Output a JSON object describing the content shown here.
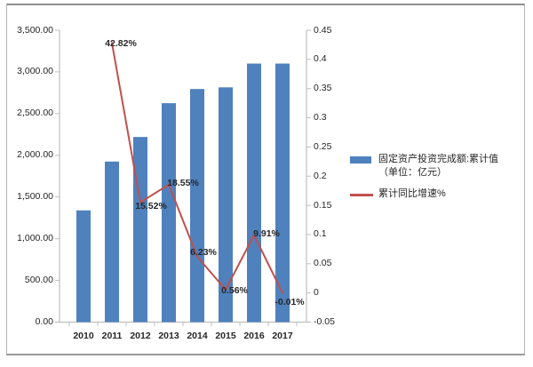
{
  "chart_data": {
    "type": "combo_bar_line",
    "title": "",
    "grid": false,
    "categories": [
      "2010",
      "2011",
      "2012",
      "2013",
      "2014",
      "2015",
      "2016",
      "2017"
    ],
    "series": [
      {
        "name": "固定资产投资完成额:累计值（单位：亿元）",
        "chart": "bar",
        "axis": "left",
        "color": "#4F81BD",
        "values": [
          1340,
          1925,
          2220,
          2625,
          2795,
          2815,
          3100,
          3100
        ]
      },
      {
        "name": "累计同比增速%",
        "chart": "line",
        "axis": "right",
        "color": "#C0504D",
        "values": [
          null,
          0.4282,
          0.1552,
          0.1855,
          0.0623,
          0.0056,
          0.0991,
          -0.0001
        ],
        "point_labels": [
          "",
          "42.82%",
          "15.52%",
          "18.55%",
          "6.23%",
          "0.56%",
          "9.91%",
          "-0.01%"
        ],
        "label_offsets": [
          [
            0,
            0
          ],
          [
            10,
            1
          ],
          [
            12,
            4
          ],
          [
            16,
            -2
          ],
          [
            7,
            -5
          ],
          [
            10,
            1
          ],
          [
            14,
            -2
          ],
          [
            8,
            10
          ]
        ]
      }
    ],
    "left_axis": {
      "min": 0,
      "max": 3500,
      "tick_labels": [
        "0.00",
        "500.00",
        "1,000.00",
        "1,500.00",
        "2,000.00",
        "2,500.00",
        "3,000.00",
        "3,500.00"
      ]
    },
    "right_axis": {
      "min": -0.05,
      "max": 0.45,
      "tick_labels": [
        "-0.05",
        "0",
        "0.05",
        "0.1",
        "0.15",
        "0.2",
        "0.25",
        "0.3",
        "0.35",
        "0.4",
        "0.45"
      ]
    },
    "legend": {
      "position": "right",
      "items": [
        {
          "swatch": "bar",
          "color": "#4F81BD",
          "lines": [
            "固定资产投资完成额:累计值",
            "（单位：亿元）"
          ]
        },
        {
          "swatch": "line",
          "color": "#C0504D",
          "lines": [
            "累计同比增速%"
          ]
        }
      ]
    }
  },
  "colors": {
    "axis_line": "#bfbfbf",
    "tick_text": "#262626",
    "frame_border": "#9a9a9a"
  }
}
